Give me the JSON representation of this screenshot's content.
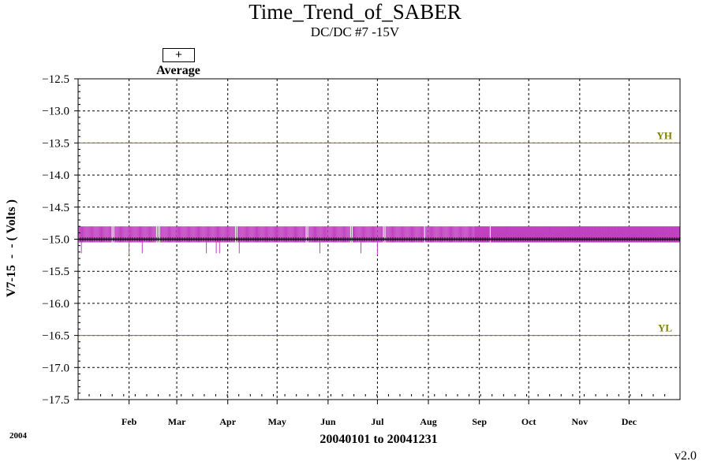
{
  "chart_data": {
    "type": "scatter",
    "title": "Time_Trend_of_SABER",
    "subtitle": "DC/DC #7 -15V",
    "ylabel": "V7-15  -  - ( Volts )",
    "xlabel": "20040101 to 20041231",
    "year_label": "2004",
    "version": "v2.0",
    "legend": {
      "symbol": "+",
      "label": "Average"
    },
    "ylim": [
      -17.5,
      -12.5
    ],
    "yticks": [
      -12.5,
      -13.0,
      -13.5,
      -14.0,
      -14.5,
      -15.0,
      -15.5,
      -16.0,
      -16.5,
      -17.0,
      -17.5
    ],
    "xlim": [
      "2004-01-01",
      "2004-12-31"
    ],
    "months": [
      {
        "label": "Feb",
        "date": "2004-02-01"
      },
      {
        "label": "Mar",
        "date": "2004-03-01"
      },
      {
        "label": "Apr",
        "date": "2004-04-01"
      },
      {
        "label": "May",
        "date": "2004-05-01"
      },
      {
        "label": "Jun",
        "date": "2004-06-01"
      },
      {
        "label": "Jul",
        "date": "2004-07-01"
      },
      {
        "label": "Aug",
        "date": "2004-08-01"
      },
      {
        "label": "Sep",
        "date": "2004-09-01"
      },
      {
        "label": "Oct",
        "date": "2004-10-01"
      },
      {
        "label": "Nov",
        "date": "2004-11-01"
      },
      {
        "label": "Dec",
        "date": "2004-12-01"
      }
    ],
    "limits": [
      {
        "name": "YH",
        "value": -13.5,
        "color": "#808000"
      },
      {
        "name": "YL",
        "value": -16.5,
        "color": "#808000"
      }
    ],
    "average_value": -15.0,
    "average_color": "#000000",
    "spike_color": "#c040c0",
    "spike_high": -14.8,
    "spike_low_typical": -15.05,
    "downward_spikes": [
      {
        "date": "2004-01-03",
        "value": -15.22
      },
      {
        "date": "2004-02-01",
        "value": -15.25
      },
      {
        "date": "2004-02-09",
        "value": -15.22
      },
      {
        "date": "2004-03-19",
        "value": -15.22
      },
      {
        "date": "2004-03-25",
        "value": -15.22
      },
      {
        "date": "2004-03-27",
        "value": -15.22
      },
      {
        "date": "2004-04-08",
        "value": -15.22
      },
      {
        "date": "2004-05-27",
        "value": -15.22
      },
      {
        "date": "2004-06-21",
        "value": -15.22
      },
      {
        "date": "2004-07-01",
        "value": -15.25
      }
    ],
    "grid": true
  }
}
